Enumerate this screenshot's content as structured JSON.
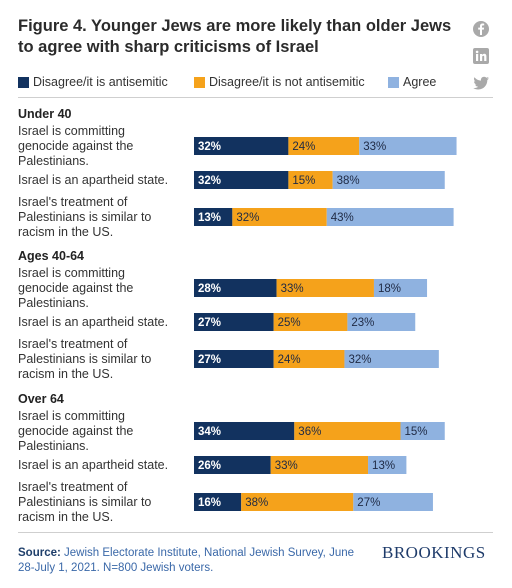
{
  "title": "Figure 4. Younger Jews are more likely than older Jews to agree with sharp criticisms of Israel",
  "social": {
    "icons": [
      "facebook-icon",
      "linkedin-icon",
      "twitter-icon"
    ]
  },
  "colors": {
    "series": [
      "#12325f",
      "#f5a21b",
      "#8fb2e0"
    ]
  },
  "chart_data": {
    "type": "bar",
    "orientation": "horizontal",
    "stacked": true,
    "series": [
      {
        "name": "Disagree/it is antisemitic",
        "color": "#12325f"
      },
      {
        "name": "Disagree/it is not antisemitic",
        "color": "#f5a21b"
      },
      {
        "name": "Agree",
        "color": "#8fb2e0"
      }
    ],
    "groups": [
      {
        "name": "Under 40",
        "rows": [
          {
            "label": "Israel is committing genocide against the Palestinians.",
            "values": [
              32,
              24,
              33
            ]
          },
          {
            "label": "Israel is an apartheid state.",
            "values": [
              32,
              15,
              38
            ]
          },
          {
            "label": "Israel's treatment of Palestinians is similar to racism in the US.",
            "values": [
              13,
              32,
              43
            ]
          }
        ]
      },
      {
        "name": "Ages 40-64",
        "rows": [
          {
            "label": "Israel is committing genocide against the Palestinians.",
            "values": [
              28,
              33,
              18
            ]
          },
          {
            "label": "Israel is an apartheid state.",
            "values": [
              27,
              25,
              23
            ]
          },
          {
            "label": "Israel's treatment of Palestinians is similar to racism in the US.",
            "values": [
              27,
              24,
              32
            ]
          }
        ]
      },
      {
        "name": "Over 64",
        "rows": [
          {
            "label": "Israel is committing genocide against the Palestinians.",
            "values": [
              34,
              36,
              15
            ]
          },
          {
            "label": "Israel is an apartheid state.",
            "values": [
              26,
              33,
              13
            ]
          },
          {
            "label": "Israel's treatment of Palestinians is similar to racism in the US.",
            "values": [
              16,
              38,
              27
            ]
          }
        ]
      }
    ],
    "value_suffix": "%",
    "legend_position": "top",
    "grid": false
  },
  "source": {
    "prefix": "Source:",
    "text": "Jewish Electorate Institute, National Jewish Survey, June 28-July 1, 2021. N=800 Jewish voters."
  },
  "brand": "BROOKINGS"
}
